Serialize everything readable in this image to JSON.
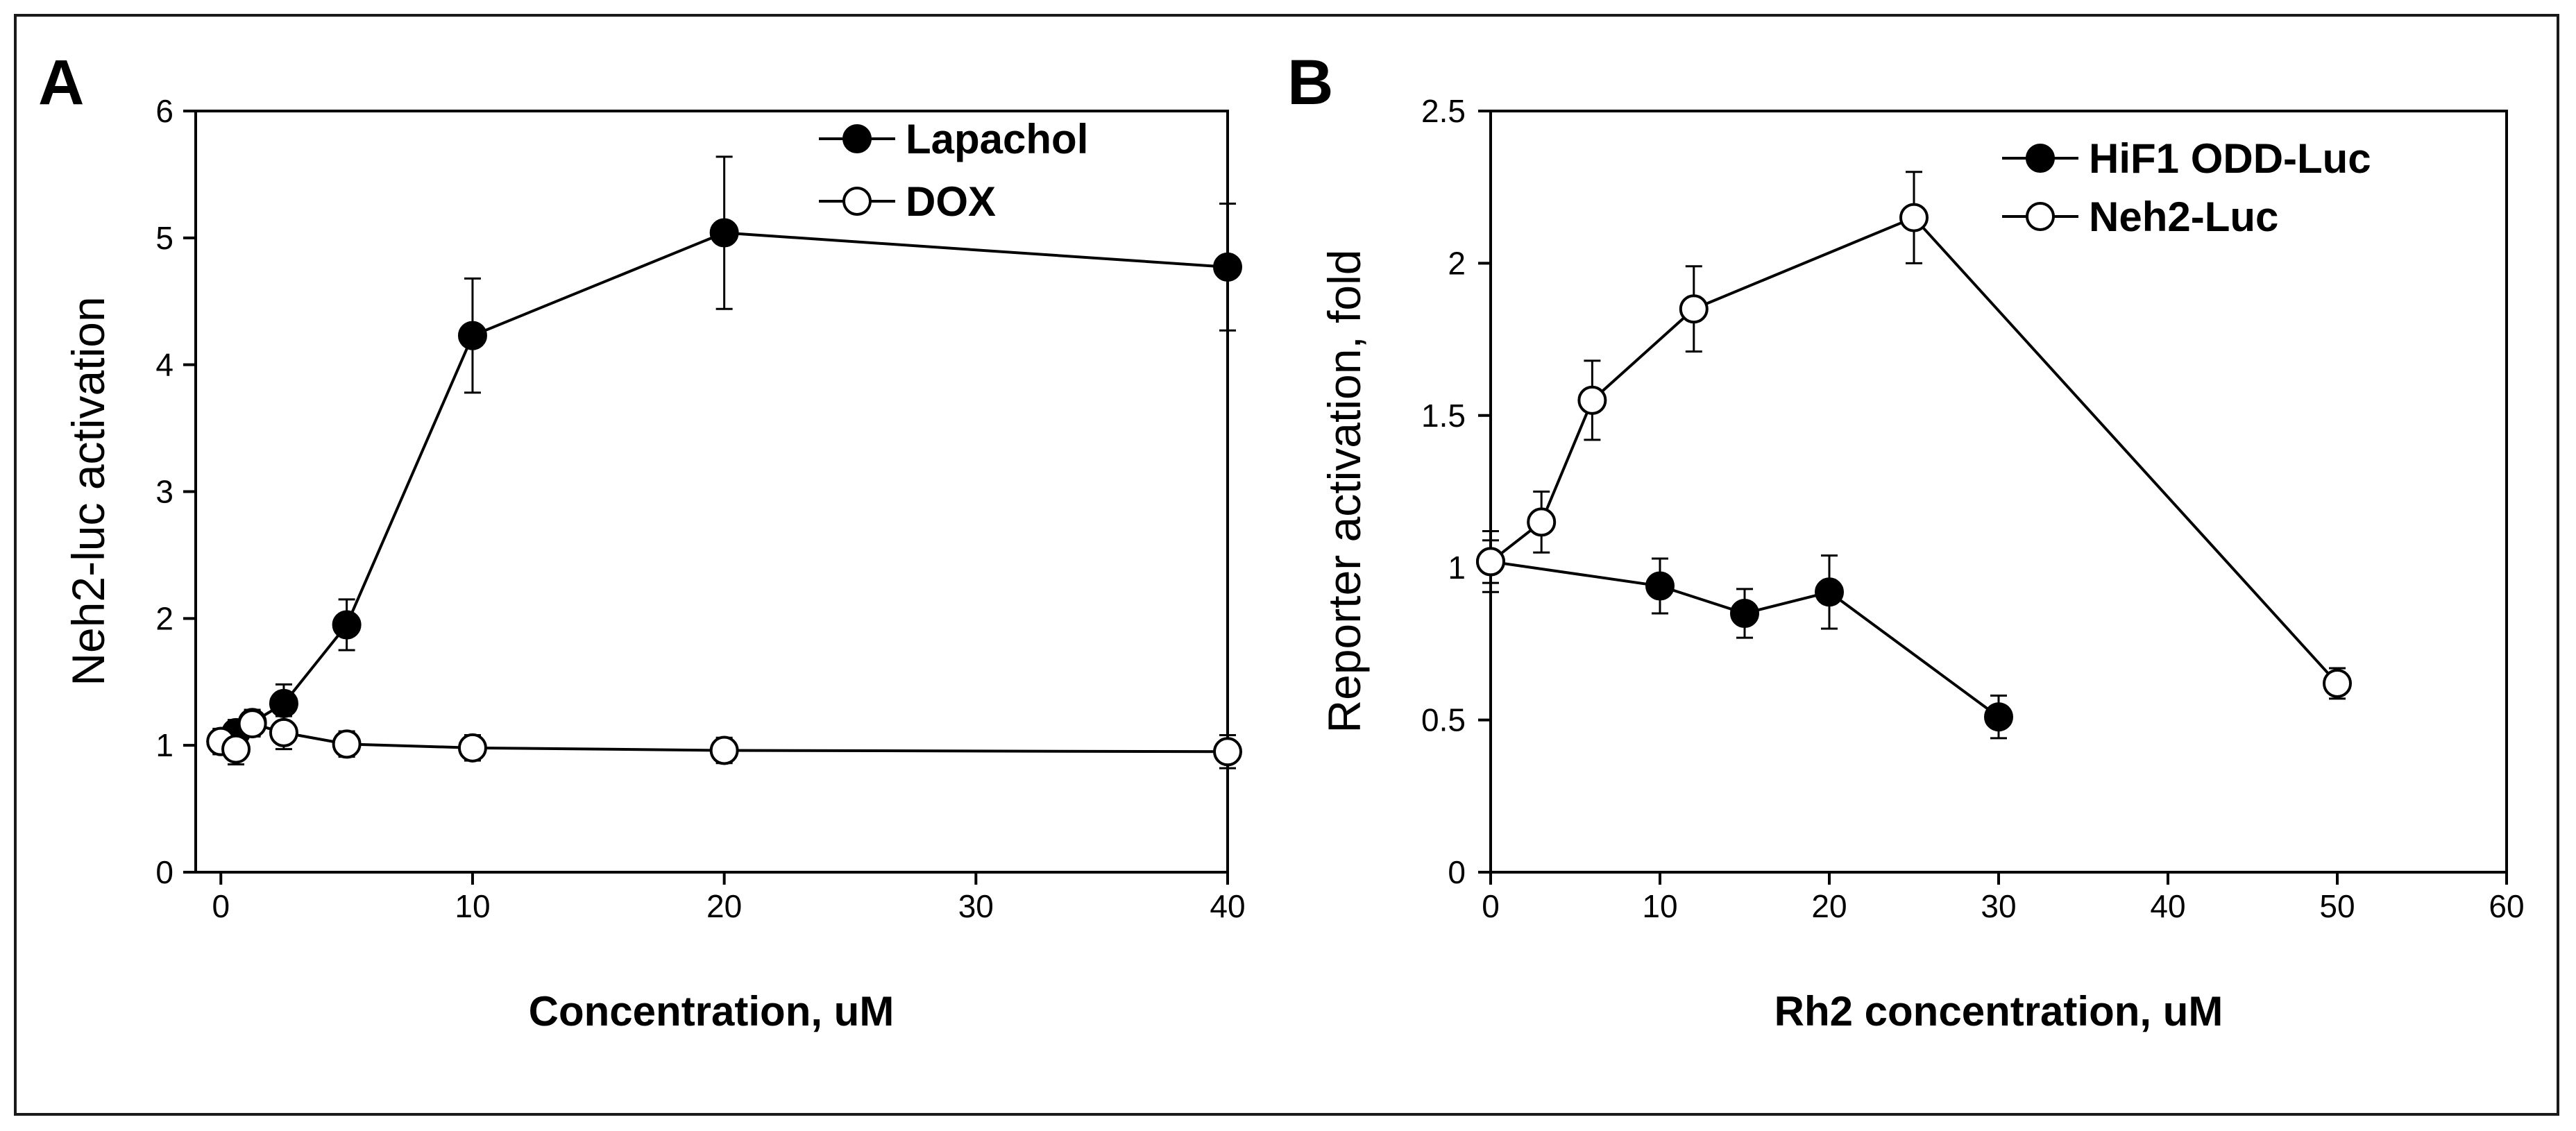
{
  "chart_data": [
    {
      "panel": "A",
      "type": "line",
      "xlabel": "Concentration, uM",
      "ylabel": "Neh2-luc activation",
      "xlim": [
        -1,
        40
      ],
      "ylim": [
        0,
        6
      ],
      "xticks": [
        0,
        10,
        20,
        30,
        40
      ],
      "yticks": [
        0,
        1,
        2,
        3,
        4,
        5,
        6
      ],
      "legend_position": "top-right",
      "series": [
        {
          "name": "Lapachol",
          "marker": "filled-circle",
          "x": [
            0,
            0.6,
            1.25,
            2.5,
            5,
            10,
            20,
            40
          ],
          "y": [
            1.03,
            1.1,
            1.18,
            1.33,
            1.95,
            4.23,
            5.04,
            4.77
          ],
          "err": [
            0.08,
            0.1,
            0.1,
            0.15,
            0.2,
            0.45,
            0.6,
            0.5
          ]
        },
        {
          "name": "DOX",
          "marker": "open-circle",
          "x": [
            0,
            0.6,
            1.25,
            2.5,
            5,
            10,
            20,
            40
          ],
          "y": [
            1.03,
            0.97,
            1.17,
            1.1,
            1.01,
            0.98,
            0.96,
            0.95
          ],
          "err": [
            0.1,
            0.12,
            0.1,
            0.13,
            0.1,
            0.1,
            0.1,
            0.13
          ]
        }
      ]
    },
    {
      "panel": "B",
      "type": "line",
      "xlabel": "Rh2 concentration, uM",
      "ylabel": "Reporter activation, fold",
      "xlim": [
        0,
        60
      ],
      "ylim": [
        0,
        2.5
      ],
      "xticks": [
        0,
        10,
        20,
        30,
        40,
        50,
        60
      ],
      "yticks": [
        0,
        0.5,
        1,
        1.5,
        2,
        2.5
      ],
      "legend_position": "top-right",
      "series": [
        {
          "name": "HiF1 ODD-Luc",
          "marker": "filled-circle",
          "x": [
            0,
            10,
            15,
            20,
            30
          ],
          "y": [
            1.02,
            0.94,
            0.85,
            0.92,
            0.51
          ],
          "err": [
            0.07,
            0.09,
            0.08,
            0.12,
            0.07
          ]
        },
        {
          "name": "Neh2-Luc",
          "marker": "open-circle",
          "x": [
            0,
            3,
            6,
            12,
            25,
            50
          ],
          "y": [
            1.02,
            1.15,
            1.55,
            1.85,
            2.15,
            0.62
          ],
          "err": [
            0.1,
            0.1,
            0.13,
            0.14,
            0.15,
            0.05
          ]
        }
      ]
    }
  ]
}
